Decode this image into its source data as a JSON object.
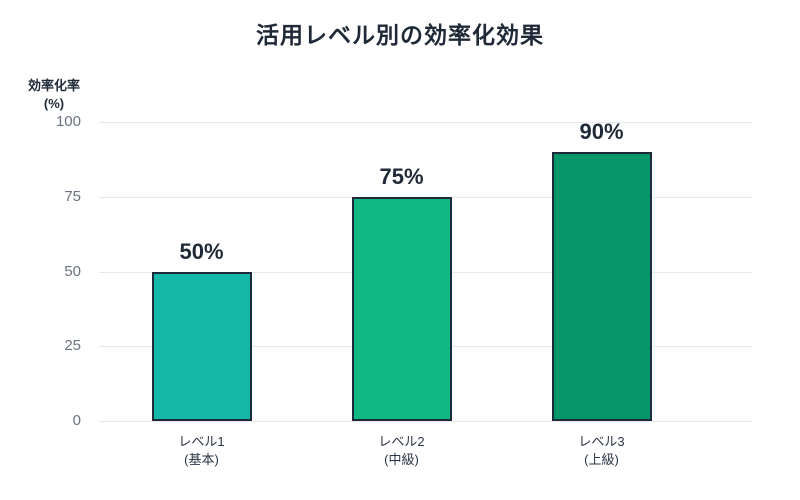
{
  "chart_data": {
    "type": "bar",
    "title": "活用レベル別の効率化効果",
    "ylabel": "効率化率",
    "ylabel_unit": "(%)",
    "ylim": [
      0,
      100
    ],
    "yticks": [
      0,
      25,
      50,
      75,
      100
    ],
    "grid": "horizontal",
    "legend": "none",
    "categories": [
      {
        "label": "レベル1",
        "sublabel": "(基本)"
      },
      {
        "label": "レベル2",
        "sublabel": "(中級)"
      },
      {
        "label": "レベル3",
        "sublabel": "(上級)"
      }
    ],
    "values": [
      50,
      75,
      90
    ],
    "value_labels": [
      "50%",
      "75%",
      "90%"
    ],
    "bar_colors": [
      "#14b8a6",
      "#10b981",
      "#059669"
    ],
    "bar_border_color": "#1e2a3a",
    "grid_color": "#e7e9ec",
    "title_color": "#1f2937",
    "tick_color": "#6b7280"
  }
}
